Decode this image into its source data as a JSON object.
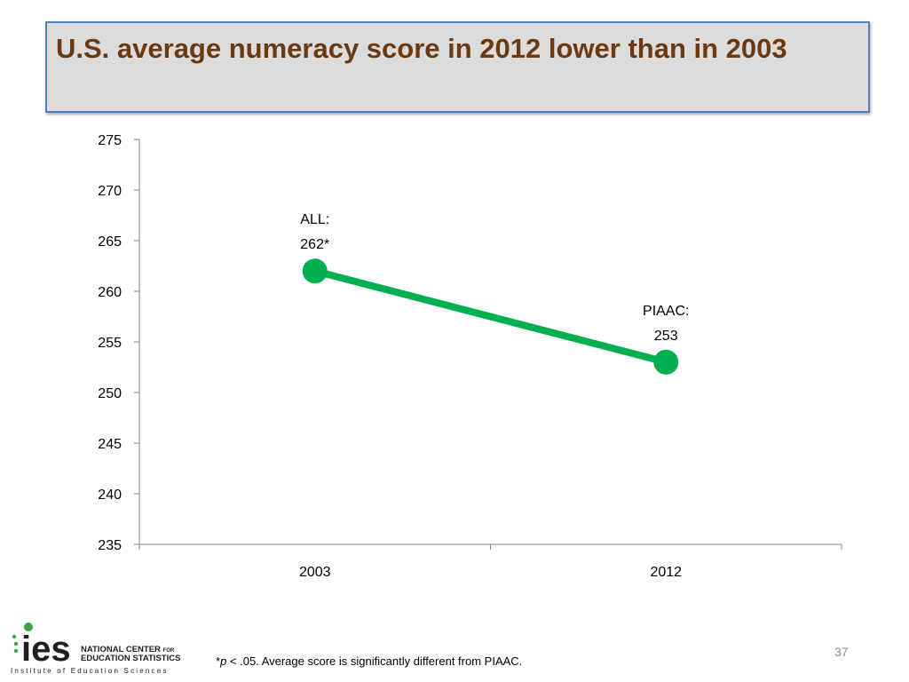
{
  "title": "U.S. average numeracy score in 2012 lower than in 2003",
  "footnote": {
    "prefix": "*",
    "p_symbol": "p",
    "text": " < .05. Average score is significantly different from PIAAC."
  },
  "page_number": "37",
  "logo": {
    "letters": "ies",
    "line1": "NATIONAL CENTER",
    "line1_small": "FOR",
    "line2": "EDUCATION STATISTICS",
    "tagline": "Institute of Education Sciences"
  },
  "colors": {
    "title_text": "#6b3a10",
    "title_bg": "#dcdcdc",
    "title_border": "#4f81bd",
    "series": "#00b050",
    "axis": "#868686",
    "logo_dark": "#1f1f1f",
    "logo_green": "#3aa64a"
  },
  "chart_data": {
    "type": "line",
    "title": "",
    "xlabel": "",
    "ylabel": "",
    "categories": [
      "2003",
      "2012"
    ],
    "series": [
      {
        "values": [
          262,
          253
        ]
      }
    ],
    "data_labels": [
      {
        "lines": [
          "ALL:",
          "262*"
        ]
      },
      {
        "lines": [
          "PIAAC:",
          "253"
        ]
      }
    ],
    "ylim": [
      235,
      275
    ],
    "y_ticks": [
      235,
      240,
      245,
      250,
      255,
      260,
      265,
      270,
      275
    ],
    "grid": false,
    "legend": "none"
  }
}
